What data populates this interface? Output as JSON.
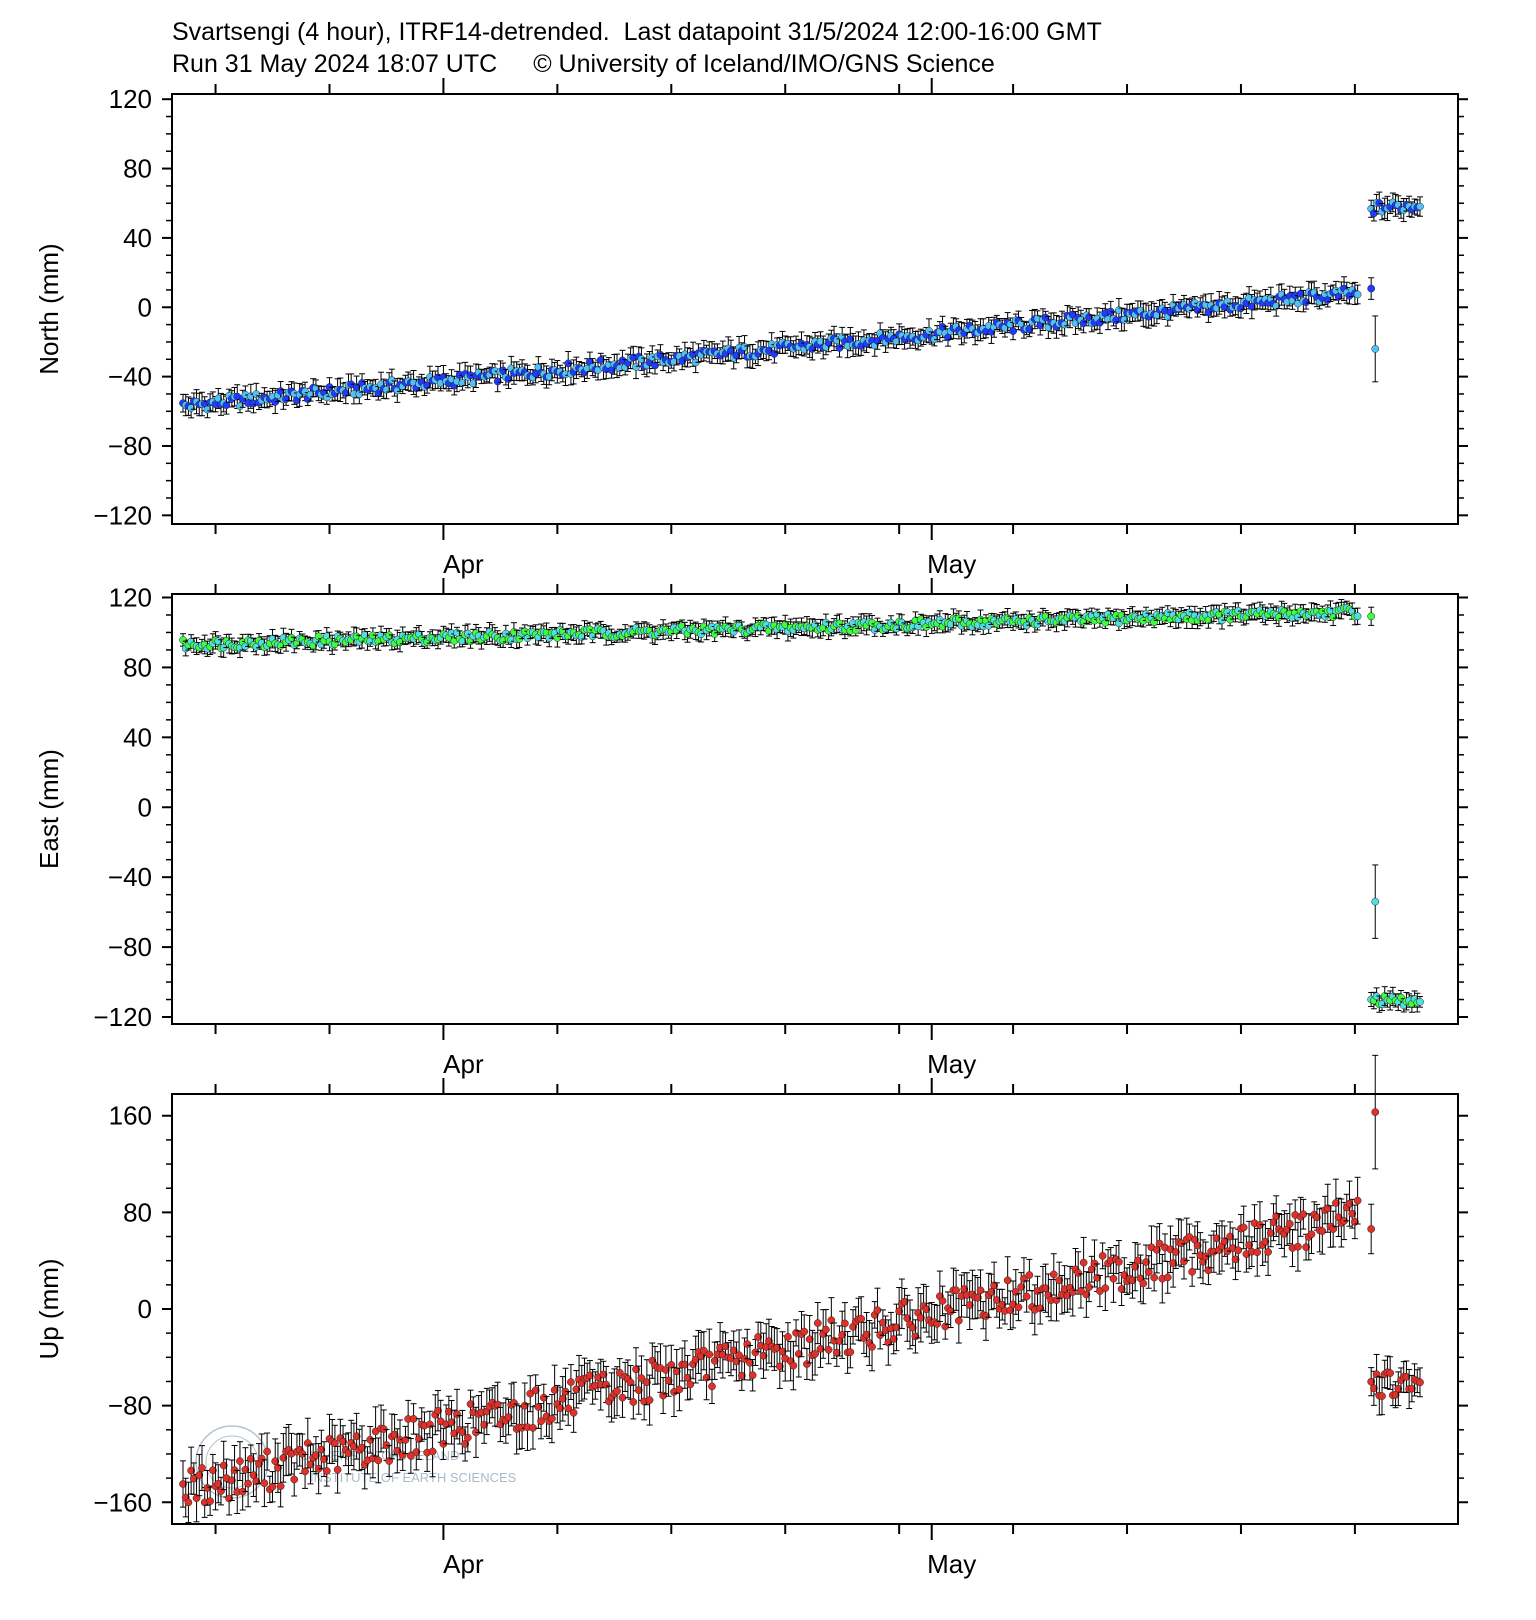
{
  "header": {
    "line1": "Svartsengi (4 hour), ITRF14-detrended.  Last datapoint 31/5/2024 12:00-16:00 GMT",
    "line2_left": "Run 31 May 2024 18:07 UTC",
    "line2_right": "© University of Iceland/IMO/GNS Science"
  },
  "watermark": {
    "seal_text": "UNIVERSITATIS ISLANDIAE",
    "line1": "UNIVERSITY OF ICELAND",
    "line2": "INSTITUTE OF EARTH SCIENCES"
  },
  "colors": {
    "north_point": "#1e3cff",
    "north_point_alt": "#4fc3f7",
    "east_point": "#3cff3c",
    "east_point_alt": "#4ee0e0",
    "up_point": "#e0302a",
    "errorbar": "#000000"
  },
  "chart_data": [
    {
      "type": "scatter",
      "ylabel": "North (mm)",
      "ylim": [
        -120,
        120
      ],
      "yticks": [
        120,
        80,
        40,
        0,
        -40,
        -80,
        -120
      ],
      "xticks": [
        "Apr",
        "May"
      ],
      "x_range_days": [
        "2024-03-16",
        "2024-05-31"
      ],
      "series": [
        {
          "segments": [
            {
              "start": "2024-03-16",
              "end": "2024-05-28",
              "y0": -57,
              "y1": 9,
              "err": 5
            },
            {
              "start": "2024-05-28",
              "end": "2024-05-31",
              "y0": 57,
              "y1": 59,
              "err": 5
            }
          ],
          "outliers": [
            {
              "x": "2024-05-28",
              "y": -24,
              "err": 19
            }
          ]
        }
      ]
    },
    {
      "type": "scatter",
      "ylabel": "East (mm)",
      "ylim": [
        -120,
        120
      ],
      "yticks": [
        120,
        80,
        40,
        0,
        -40,
        -80,
        -120
      ],
      "xticks": [
        "Apr",
        "May"
      ],
      "series": [
        {
          "segments": [
            {
              "start": "2024-03-16",
              "end": "2024-05-28",
              "y0": 93,
              "y1": 112,
              "err": 4
            },
            {
              "start": "2024-05-28",
              "end": "2024-05-31",
              "y0": -110,
              "y1": -112,
              "err": 4
            }
          ],
          "outliers": [
            {
              "x": "2024-05-28",
              "y": -54,
              "err": 21
            }
          ]
        }
      ]
    },
    {
      "type": "scatter",
      "ylabel": "Up (mm)",
      "ylim": [
        -170,
        170
      ],
      "yticks": [
        160,
        80,
        0,
        -80,
        -160
      ],
      "xticks": [
        "Apr",
        "May"
      ],
      "series": [
        {
          "segments": [
            {
              "start": "2024-03-16",
              "end": "2024-05-28",
              "y0": -150,
              "y1": 80,
              "err": 15
            },
            {
              "start": "2024-05-28",
              "end": "2024-05-31",
              "y0": -60,
              "y1": -68,
              "err": 12
            }
          ],
          "outliers": [
            {
              "x": "2024-05-28",
              "y": 163,
              "err": 47
            }
          ]
        }
      ]
    }
  ]
}
